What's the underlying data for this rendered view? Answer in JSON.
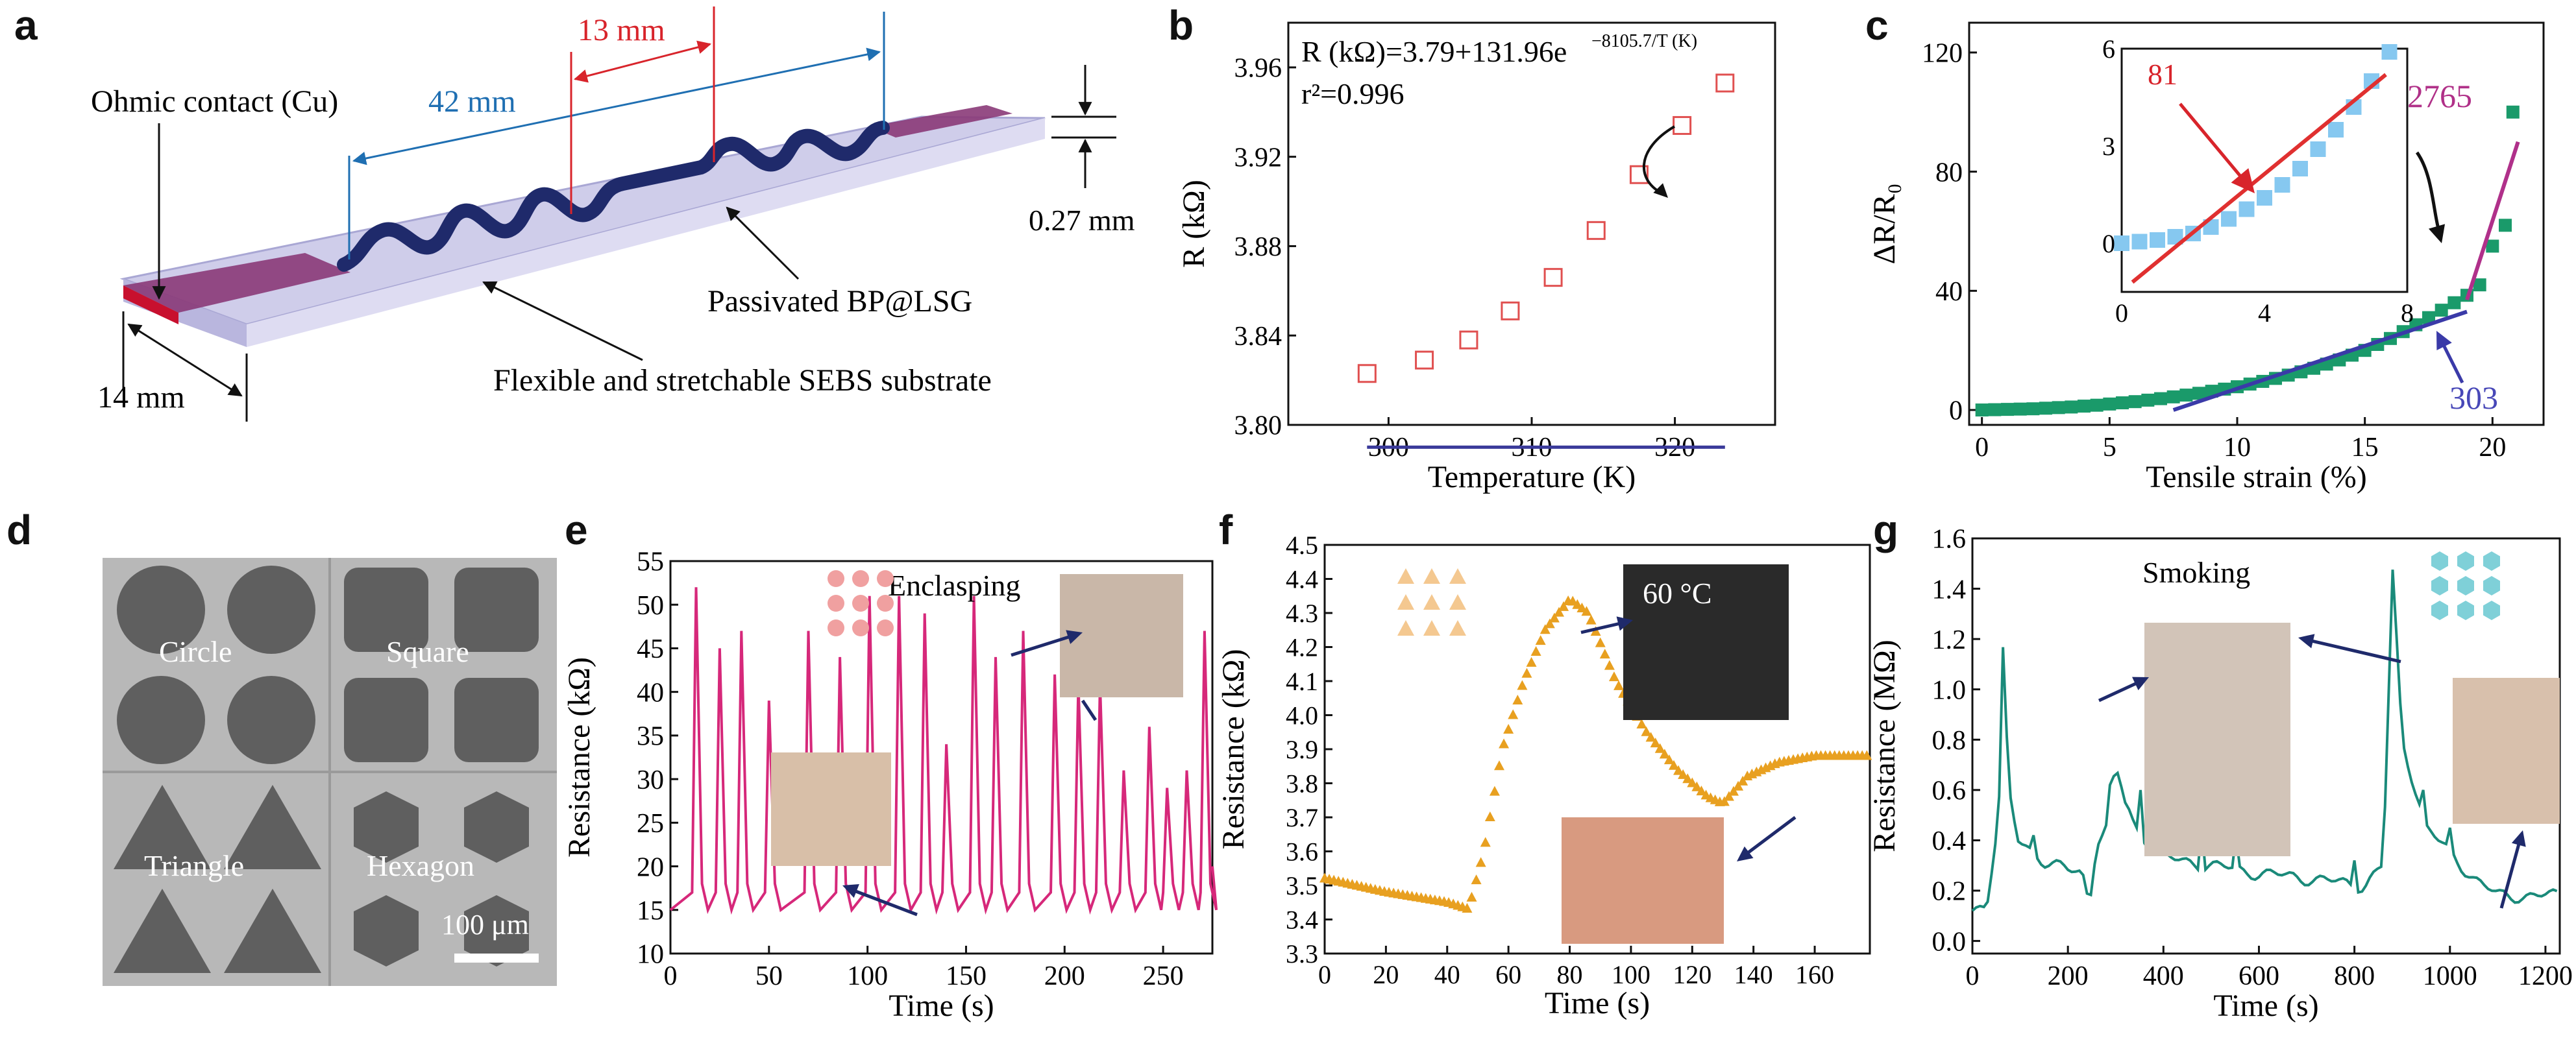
{
  "figure": {
    "panel_letters": [
      "a",
      "b",
      "c",
      "d",
      "e",
      "f",
      "g"
    ]
  },
  "panel_a": {
    "labels": {
      "ohmic": "Ohmic contact (Cu)",
      "len42": "42 mm",
      "len13": "13 mm",
      "thick": "0.27 mm",
      "bp": "Passivated BP@LSG",
      "substrate": "Flexible and stretchable SEBS substrate",
      "width": "14 mm"
    },
    "colors": {
      "substrate": "#c9c8e6",
      "trace": "#1f2a6b",
      "contact": "#c8102e",
      "dim_blue": "#1f6fb2",
      "dim_red": "#d8242b"
    }
  },
  "panel_d": {
    "labels": [
      "Circle",
      "Square",
      "Triangle",
      "Hexagon"
    ],
    "scale_bar": "100 μm"
  },
  "chart_data": [
    {
      "id": "b",
      "type": "scatter",
      "xlabel": "Temperature (K)",
      "ylabel": "R (kΩ)",
      "xlim": [
        293,
        327
      ],
      "ylim": [
        3.8,
        3.98
      ],
      "xticks": [
        300,
        310,
        320
      ],
      "yticks": [
        3.8,
        3.84,
        3.88,
        3.92,
        3.96
      ],
      "equation": "R (kΩ)=3.79+131.96e",
      "equation_exp": "−8105.7/T (K)",
      "r2": "r²=0.996",
      "series": [
        {
          "marker": "open-square",
          "color": "#e05050",
          "x": [
            298.5,
            302.5,
            305.6,
            308.5,
            311.5,
            314.5,
            317.5,
            320.5,
            323.5
          ],
          "y": [
            3.823,
            3.829,
            3.838,
            3.851,
            3.866,
            3.887,
            3.912,
            3.934,
            3.953
          ]
        },
        {
          "line": true,
          "color": "#3a3a9a",
          "fit": {
            "a": 3.79,
            "b": 131.96,
            "c": 8105.7
          },
          "xrange": [
            298.5,
            323.5
          ]
        }
      ]
    },
    {
      "id": "c",
      "type": "scatter",
      "xlabel": "Tensile strain (%)",
      "ylabel": "ΔR/R₀",
      "xlim": [
        -0.5,
        22
      ],
      "ylim": [
        -5,
        130
      ],
      "xticks": [
        0,
        5,
        10,
        15,
        20
      ],
      "yticks": [
        0,
        40,
        80,
        120
      ],
      "annotations": [
        "2765",
        "303"
      ],
      "colors": {
        "points": "#1a9a6a",
        "slope1": "#3a3aa8",
        "slope2": "#b0308a",
        "slope1_label": "#4848b8",
        "slope2_label": "#b03088"
      },
      "series": [
        {
          "marker": "filled-square",
          "x": [
            0,
            0.5,
            1,
            1.5,
            2,
            2.5,
            3,
            3.5,
            4,
            4.5,
            5,
            5.5,
            6,
            6.5,
            7,
            7.5,
            8,
            8.5,
            9,
            9.5,
            10,
            10.5,
            11,
            11.5,
            12,
            12.5,
            13,
            13.5,
            14,
            14.5,
            15,
            15.5,
            16,
            16.5,
            17,
            17.5,
            18,
            18.5,
            19,
            19.5,
            20,
            20.5,
            20.8
          ],
          "y": [
            0,
            0.1,
            0.2,
            0.3,
            0.4,
            0.6,
            0.8,
            1,
            1.3,
            1.6,
            2,
            2.4,
            2.8,
            3.3,
            3.8,
            4.4,
            5,
            5.6,
            6.3,
            7,
            7.8,
            8.7,
            9.6,
            10.6,
            11.7,
            12.8,
            14,
            15.4,
            16.8,
            18.4,
            20,
            22,
            24,
            26.3,
            28.6,
            31,
            33.5,
            36,
            38.5,
            42,
            55,
            62,
            100
          ]
        },
        {
          "line": true,
          "name": "303",
          "x": [
            7.5,
            19
          ],
          "y": [
            0,
            33
          ]
        },
        {
          "line": true,
          "name": "2765",
          "x": [
            19,
            21
          ],
          "y": [
            37,
            90
          ]
        }
      ],
      "inset": {
        "xlim": [
          0,
          8
        ],
        "ylim": [
          -1.5,
          6
        ],
        "xticks": [
          0,
          4,
          8
        ],
        "yticks": [
          0,
          3,
          6
        ],
        "annotation": "81",
        "points": {
          "x": [
            0,
            0.5,
            1,
            1.5,
            2,
            2.5,
            3,
            3.5,
            4,
            4.5,
            5,
            5.5,
            6,
            6.5,
            7,
            7.5
          ],
          "y": [
            0,
            0.05,
            0.1,
            0.2,
            0.3,
            0.5,
            0.75,
            1.05,
            1.4,
            1.8,
            2.3,
            2.9,
            3.5,
            4.2,
            5.0,
            5.9
          ]
        },
        "fit": {
          "x": [
            0.3,
            7.4
          ],
          "y": [
            -1.2,
            5.2
          ]
        }
      }
    },
    {
      "id": "e",
      "type": "line",
      "xlabel": "Time (s)",
      "ylabel": "Resistance (kΩ)",
      "annotation": "Enclasping",
      "xlim": [
        0,
        275
      ],
      "ylim": [
        10,
        55
      ],
      "xticks": [
        0,
        50,
        100,
        150,
        200,
        250
      ],
      "yticks": [
        10,
        15,
        20,
        25,
        30,
        35,
        40,
        45,
        50,
        55
      ],
      "color": "#d6287a",
      "baseline": 15,
      "peaks": [
        [
          13,
          52
        ],
        [
          25,
          45
        ],
        [
          36,
          47
        ],
        [
          50,
          39
        ],
        [
          70,
          47
        ],
        [
          86,
          44
        ],
        [
          101,
          51
        ],
        [
          116,
          51
        ],
        [
          129,
          49
        ],
        [
          140,
          34
        ],
        [
          154,
          51
        ],
        [
          165,
          44
        ],
        [
          179,
          47
        ],
        [
          195,
          42
        ],
        [
          207,
          41
        ],
        [
          218,
          41
        ],
        [
          230,
          31
        ],
        [
          243,
          36
        ],
        [
          252,
          29
        ],
        [
          262,
          31
        ],
        [
          271,
          47
        ]
      ]
    },
    {
      "id": "f",
      "type": "scatter",
      "xlabel": "Time (s)",
      "ylabel": "Resistance (kΩ)",
      "annotation": "60 °C",
      "xlim": [
        0,
        178
      ],
      "ylim": [
        3.3,
        4.5
      ],
      "xticks": [
        0,
        20,
        40,
        60,
        80,
        100,
        120,
        140,
        160
      ],
      "yticks": [
        3.3,
        3.4,
        3.5,
        3.6,
        3.7,
        3.8,
        3.9,
        4.0,
        4.1,
        4.2,
        4.3,
        4.4,
        4.5
      ],
      "color": "#e8a020",
      "knots": [
        [
          0,
          3.52
        ],
        [
          20,
          3.48
        ],
        [
          40,
          3.45
        ],
        [
          47,
          3.43
        ],
        [
          52,
          3.6
        ],
        [
          58,
          3.9
        ],
        [
          65,
          4.1
        ],
        [
          72,
          4.25
        ],
        [
          80,
          4.34
        ],
        [
          86,
          4.3
        ],
        [
          95,
          4.1
        ],
        [
          105,
          3.95
        ],
        [
          115,
          3.84
        ],
        [
          125,
          3.76
        ],
        [
          130,
          3.74
        ],
        [
          138,
          3.82
        ],
        [
          148,
          3.86
        ],
        [
          160,
          3.88
        ],
        [
          178,
          3.88
        ]
      ]
    },
    {
      "id": "g",
      "type": "line",
      "xlabel": "Time (s)",
      "ylabel": "Resistance (MΩ)",
      "annotation": "Smoking",
      "xlim": [
        0,
        1230
      ],
      "ylim": [
        -0.05,
        1.6
      ],
      "xticks": [
        0,
        200,
        400,
        600,
        800,
        1000,
        1200
      ],
      "yticks": [
        0,
        0.2,
        0.4,
        0.6,
        0.8,
        1.0,
        1.2,
        1.4,
        1.6
      ],
      "color": "#1a8a7a",
      "knots": [
        [
          0,
          0.12
        ],
        [
          30,
          0.15
        ],
        [
          55,
          0.5
        ],
        [
          65,
          1.22
        ],
        [
          75,
          0.6
        ],
        [
          95,
          0.4
        ],
        [
          150,
          0.32
        ],
        [
          200,
          0.28
        ],
        [
          230,
          0.27
        ],
        [
          245,
          0.15
        ],
        [
          260,
          0.4
        ],
        [
          280,
          0.45
        ],
        [
          300,
          0.68
        ],
        [
          340,
          0.45
        ],
        [
          400,
          0.33
        ],
        [
          500,
          0.3
        ],
        [
          600,
          0.27
        ],
        [
          700,
          0.25
        ],
        [
          820,
          0.22
        ],
        [
          860,
          0.3
        ],
        [
          880,
          1.46
        ],
        [
          900,
          0.8
        ],
        [
          950,
          0.45
        ],
        [
          1000,
          0.35
        ],
        [
          1050,
          0.25
        ],
        [
          1100,
          0.18
        ],
        [
          1230,
          0.18
        ]
      ],
      "spikes": [
        [
          130,
          0.42
        ],
        [
          290,
          0.62
        ],
        [
          320,
          0.55
        ],
        [
          350,
          0.6
        ],
        [
          480,
          0.45
        ],
        [
          550,
          0.42
        ],
        [
          620,
          0.4
        ],
        [
          700,
          0.38
        ],
        [
          800,
          0.32
        ],
        [
          945,
          0.6
        ],
        [
          1000,
          0.45
        ]
      ]
    }
  ]
}
